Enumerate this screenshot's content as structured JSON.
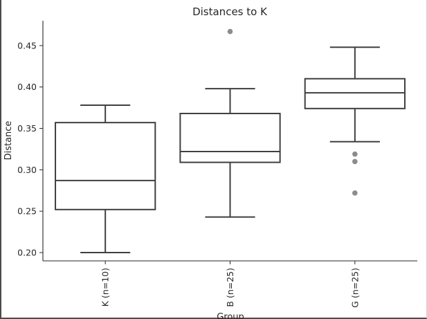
{
  "chart_data": {
    "type": "box",
    "title": "Distances to K",
    "xlabel": "Group",
    "ylabel": "Distance",
    "ylim": [
      0.19,
      0.48
    ],
    "yticks": [
      0.2,
      0.25,
      0.3,
      0.35,
      0.4,
      0.45
    ],
    "ytick_labels": [
      "0.20",
      "0.25",
      "0.30",
      "0.35",
      "0.40",
      "0.45"
    ],
    "grid": false,
    "categories": [
      "K (n=10)",
      "B (n=25)",
      "G (n=25)"
    ],
    "boxes": [
      {
        "category": "K (n=10)",
        "whisker_low": 0.2,
        "q1": 0.252,
        "median": 0.287,
        "q3": 0.357,
        "whisker_high": 0.378,
        "fliers": []
      },
      {
        "category": "B (n=25)",
        "whisker_low": 0.243,
        "q1": 0.309,
        "median": 0.322,
        "q3": 0.368,
        "whisker_high": 0.398,
        "fliers": [
          0.467
        ]
      },
      {
        "category": "G (n=25)",
        "whisker_low": 0.334,
        "q1": 0.374,
        "median": 0.393,
        "q3": 0.41,
        "whisker_high": 0.448,
        "fliers": [
          0.319,
          0.31,
          0.272
        ]
      }
    ],
    "colors": {
      "box_edge": "#3f3f3f",
      "flier": "#8c8c8c",
      "axis": "#262626"
    }
  }
}
